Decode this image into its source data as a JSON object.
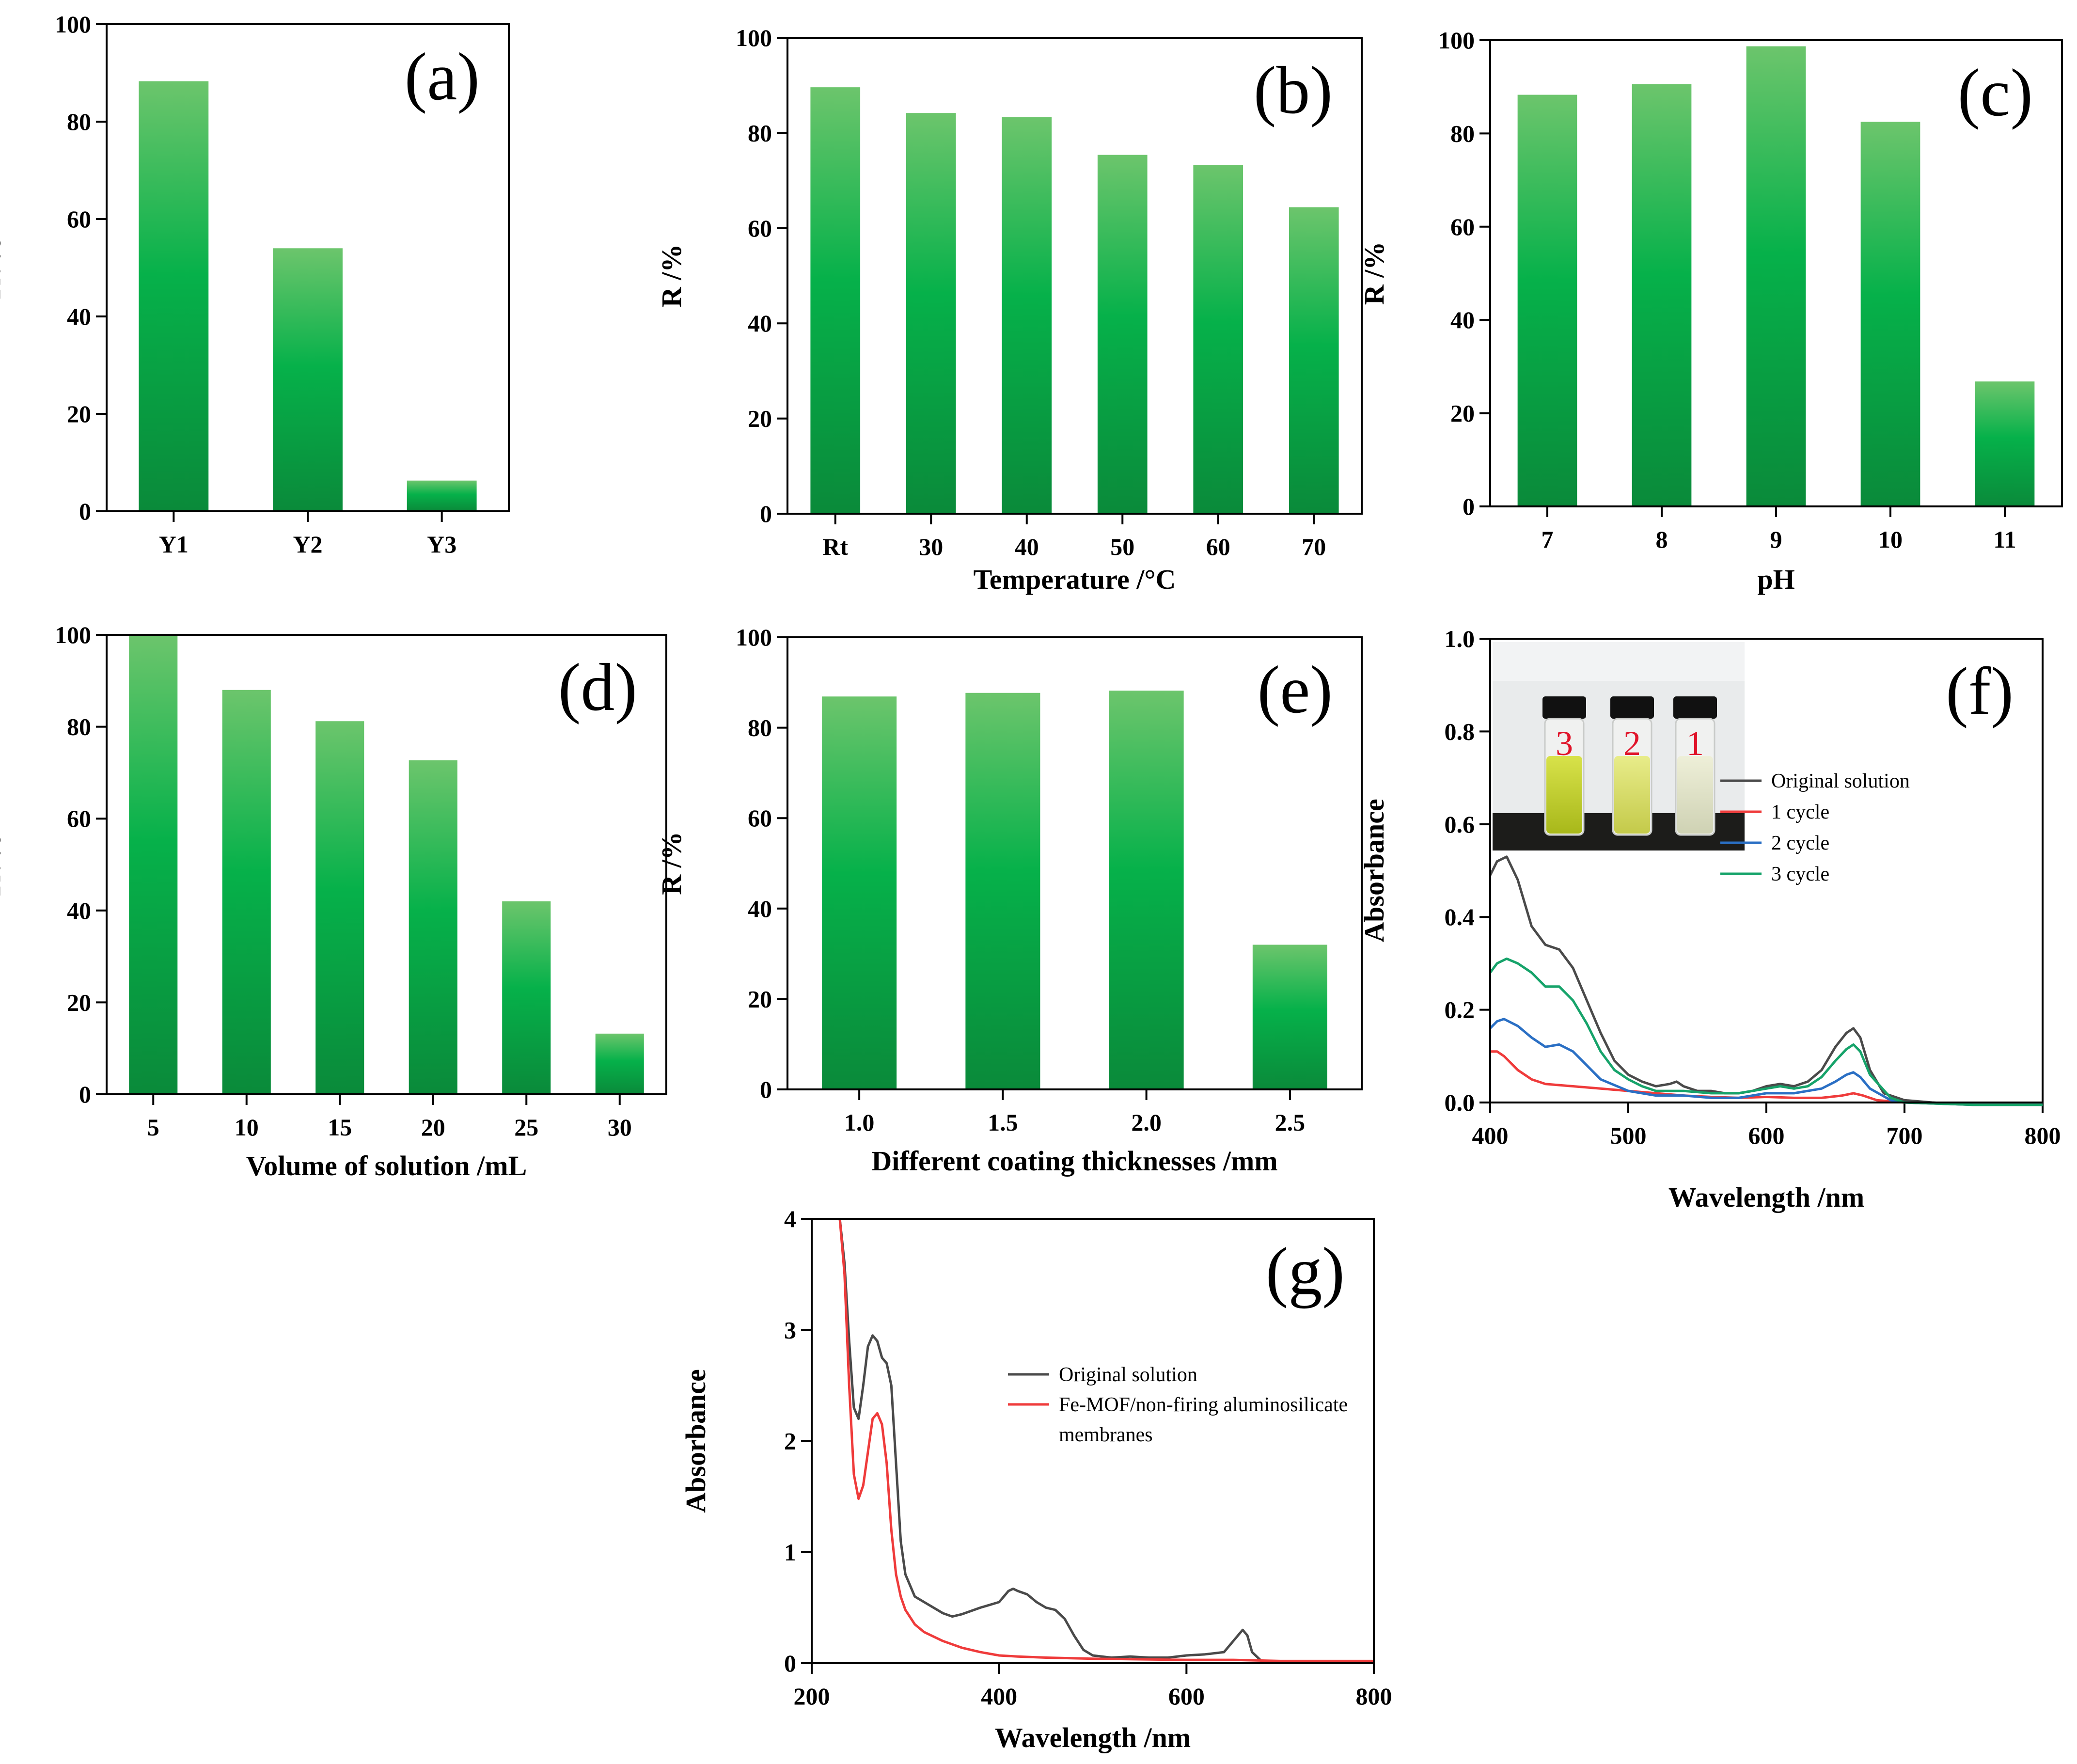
{
  "chart_data": [
    {
      "id": "a",
      "type": "bar",
      "panel_label": "(a)",
      "categories": [
        "Y1",
        "Y2",
        "Y3"
      ],
      "values": [
        88.3,
        54.0,
        6.3
      ],
      "xlabel": "",
      "ylabel": "R /%",
      "ylim": [
        0,
        100
      ],
      "yticks": [
        0,
        20,
        40,
        60,
        80,
        100
      ]
    },
    {
      "id": "b",
      "type": "bar",
      "panel_label": "(b)",
      "categories": [
        "Rt",
        "30",
        "40",
        "50",
        "60",
        "70"
      ],
      "values": [
        89.6,
        84.2,
        83.3,
        75.4,
        73.3,
        64.4
      ],
      "xlabel": "Temperature /°C",
      "ylabel": "R /%",
      "ylim": [
        0,
        100
      ],
      "yticks": [
        0,
        20,
        40,
        60,
        80,
        100
      ]
    },
    {
      "id": "c",
      "type": "bar",
      "panel_label": "(c)",
      "categories": [
        "7",
        "8",
        "9",
        "10",
        "11"
      ],
      "values": [
        88.3,
        90.6,
        98.7,
        82.5,
        26.8
      ],
      "xlabel": "pH",
      "ylabel": "R /%",
      "ylim": [
        0,
        100
      ],
      "yticks": [
        0,
        20,
        40,
        60,
        80,
        100
      ]
    },
    {
      "id": "d",
      "type": "bar",
      "panel_label": "(d)",
      "categories": [
        "5",
        "10",
        "15",
        "20",
        "25",
        "30"
      ],
      "values": [
        100.0,
        88.0,
        81.2,
        72.7,
        42.0,
        13.2
      ],
      "xlabel": "Volume of solution /mL",
      "ylabel": "R /%",
      "ylim": [
        0,
        100
      ],
      "yticks": [
        0,
        20,
        40,
        60,
        80,
        100
      ]
    },
    {
      "id": "e",
      "type": "bar",
      "panel_label": "(e)",
      "categories": [
        "1.0",
        "1.5",
        "2.0",
        "2.5"
      ],
      "values": [
        86.9,
        87.7,
        88.2,
        32.0
      ],
      "xlabel": "Different coating thicknesses  /mm",
      "ylabel": "R /%",
      "ylim": [
        0,
        100
      ],
      "yticks": [
        0,
        20,
        40,
        60,
        80,
        100
      ]
    },
    {
      "id": "f",
      "type": "line",
      "panel_label": "(f)",
      "xlabel": "Wavelength /nm",
      "ylabel": "Absorbance",
      "xlim": [
        400,
        800
      ],
      "ylim": [
        0,
        1.0
      ],
      "xticks": [
        400,
        500,
        600,
        700,
        800
      ],
      "yticks": [
        "0.0",
        "0.2",
        "0.4",
        "0.6",
        "0.8",
        "1.0"
      ],
      "legend_position": "right",
      "inset": {
        "description": "photo of three vials",
        "vial_labels": [
          "3",
          "2",
          "1"
        ]
      },
      "series": [
        {
          "name": "Original solution",
          "color": "#4a4a4a",
          "x": [
            400,
            405,
            412,
            420,
            430,
            440,
            450,
            460,
            470,
            480,
            490,
            500,
            510,
            520,
            530,
            535,
            540,
            550,
            560,
            570,
            580,
            590,
            600,
            610,
            620,
            630,
            640,
            650,
            658,
            663,
            668,
            675,
            685,
            700,
            720,
            750,
            800
          ],
          "y": [
            0.49,
            0.52,
            0.53,
            0.48,
            0.38,
            0.34,
            0.33,
            0.29,
            0.22,
            0.15,
            0.09,
            0.06,
            0.045,
            0.035,
            0.04,
            0.045,
            0.035,
            0.025,
            0.025,
            0.02,
            0.02,
            0.025,
            0.035,
            0.04,
            0.035,
            0.045,
            0.07,
            0.12,
            0.15,
            0.16,
            0.14,
            0.07,
            0.02,
            0.005,
            0.0,
            -0.005,
            -0.005
          ]
        },
        {
          "name": "1 cycle",
          "color": "#ef3b3b",
          "x": [
            400,
            405,
            410,
            420,
            430,
            440,
            460,
            480,
            500,
            520,
            540,
            560,
            580,
            600,
            620,
            640,
            655,
            663,
            670,
            680,
            700,
            750,
            800
          ],
          "y": [
            0.11,
            0.11,
            0.1,
            0.07,
            0.05,
            0.04,
            0.035,
            0.03,
            0.025,
            0.02,
            0.015,
            0.012,
            0.01,
            0.012,
            0.01,
            0.01,
            0.015,
            0.02,
            0.015,
            0.005,
            0.0,
            -0.005,
            -0.005
          ]
        },
        {
          "name": "2 cycle",
          "color": "#2a6fc4",
          "x": [
            400,
            405,
            410,
            420,
            430,
            440,
            450,
            460,
            470,
            480,
            500,
            520,
            540,
            560,
            580,
            600,
            620,
            640,
            650,
            658,
            663,
            668,
            675,
            690,
            700,
            750,
            800
          ],
          "y": [
            0.16,
            0.175,
            0.18,
            0.165,
            0.14,
            0.12,
            0.125,
            0.11,
            0.08,
            0.05,
            0.025,
            0.015,
            0.015,
            0.01,
            0.01,
            0.02,
            0.02,
            0.03,
            0.045,
            0.06,
            0.065,
            0.055,
            0.03,
            0.005,
            0.0,
            -0.005,
            -0.005
          ]
        },
        {
          "name": "3 cycle",
          "color": "#16a36a",
          "x": [
            400,
            405,
            412,
            420,
            430,
            440,
            450,
            460,
            470,
            480,
            490,
            500,
            510,
            520,
            530,
            540,
            560,
            580,
            600,
            610,
            620,
            630,
            640,
            650,
            658,
            663,
            668,
            675,
            690,
            700,
            750,
            800
          ],
          "y": [
            0.28,
            0.3,
            0.31,
            0.3,
            0.28,
            0.25,
            0.25,
            0.22,
            0.17,
            0.11,
            0.07,
            0.05,
            0.035,
            0.025,
            0.025,
            0.025,
            0.02,
            0.02,
            0.03,
            0.035,
            0.03,
            0.035,
            0.055,
            0.09,
            0.115,
            0.125,
            0.11,
            0.06,
            0.01,
            0.0,
            -0.005,
            -0.005
          ]
        }
      ]
    },
    {
      "id": "g",
      "type": "line",
      "panel_label": "(g)",
      "xlabel": "Wavelength /nm",
      "ylabel": "Absorbance",
      "xlim": [
        200,
        800
      ],
      "ylim": [
        0,
        4
      ],
      "xticks": [
        200,
        400,
        600,
        800
      ],
      "yticks": [
        "0",
        "1",
        "2",
        "3",
        "4"
      ],
      "legend_position": "right",
      "series": [
        {
          "name": "Original solution",
          "color": "#4a4a4a",
          "x": [
            230,
            235,
            240,
            245,
            250,
            255,
            260,
            265,
            270,
            275,
            280,
            285,
            290,
            295,
            300,
            310,
            320,
            340,
            350,
            360,
            380,
            400,
            410,
            415,
            420,
            430,
            440,
            450,
            460,
            470,
            480,
            490,
            500,
            520,
            540,
            560,
            580,
            600,
            620,
            640,
            650,
            660,
            665,
            670,
            680,
            700,
            800
          ],
          "y": [
            4.0,
            3.6,
            2.9,
            2.3,
            2.2,
            2.5,
            2.85,
            2.95,
            2.9,
            2.75,
            2.7,
            2.5,
            1.8,
            1.1,
            0.8,
            0.6,
            0.55,
            0.45,
            0.42,
            0.44,
            0.5,
            0.55,
            0.65,
            0.67,
            0.65,
            0.62,
            0.55,
            0.5,
            0.48,
            0.4,
            0.25,
            0.12,
            0.07,
            0.05,
            0.06,
            0.05,
            0.05,
            0.07,
            0.08,
            0.1,
            0.2,
            0.3,
            0.25,
            0.1,
            0.02,
            0.01,
            0.01
          ]
        },
        {
          "name": "Fe-MOF/non-firing aluminosilicate membranes",
          "color": "#ef3b3b",
          "x": [
            230,
            235,
            240,
            245,
            250,
            255,
            260,
            265,
            270,
            275,
            280,
            285,
            290,
            295,
            300,
            310,
            320,
            340,
            360,
            380,
            400,
            420,
            450,
            500,
            550,
            600,
            650,
            700,
            800
          ],
          "y": [
            4.0,
            3.5,
            2.5,
            1.7,
            1.48,
            1.6,
            1.9,
            2.2,
            2.25,
            2.15,
            1.8,
            1.2,
            0.8,
            0.6,
            0.48,
            0.35,
            0.28,
            0.2,
            0.14,
            0.1,
            0.07,
            0.06,
            0.05,
            0.04,
            0.035,
            0.03,
            0.03,
            0.02,
            0.02
          ]
        }
      ]
    }
  ]
}
